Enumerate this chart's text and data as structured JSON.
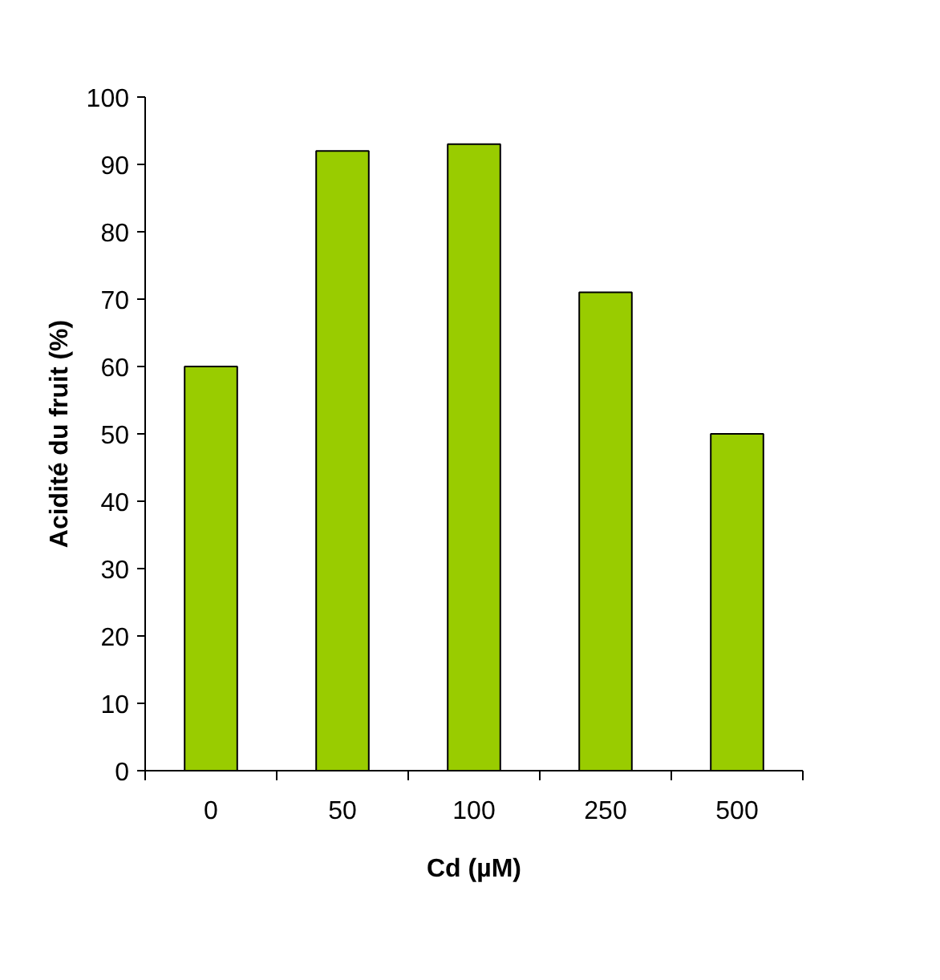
{
  "chart_data": {
    "type": "bar",
    "xlabel": "Cd (µM)",
    "ylabel": "Acidité du fruit (%)",
    "categories": [
      "0",
      "50",
      "100",
      "250",
      "500"
    ],
    "values": [
      60,
      92,
      93,
      71,
      50
    ],
    "color": "#99cc00",
    "ylim": [
      0,
      100
    ],
    "yticks": [
      0,
      10,
      20,
      30,
      40,
      50,
      60,
      70,
      80,
      90,
      100
    ],
    "grid": false
  }
}
